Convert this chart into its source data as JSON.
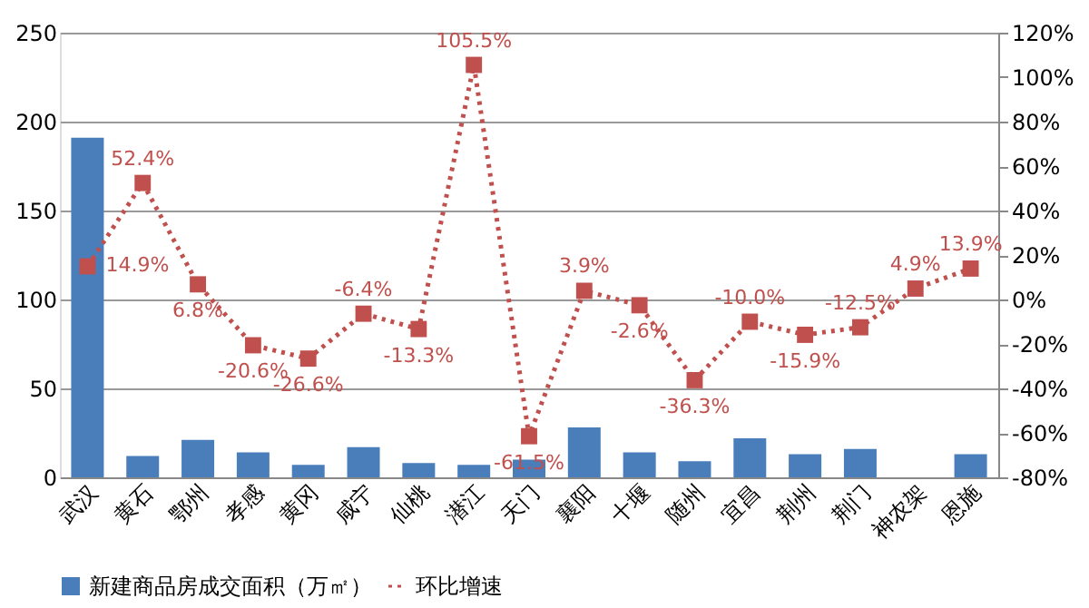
{
  "chart_data": {
    "type": "bar",
    "categories": [
      "武汉",
      "黄石",
      "鄂州",
      "孝感",
      "黄冈",
      "咸宁",
      "仙桃",
      "潜江",
      "天门",
      "襄阳",
      "十堰",
      "随州",
      "宜昌",
      "荆州",
      "荆门",
      "神农架",
      "恩施"
    ],
    "series": [
      {
        "name": "新建商品房成交面积（万㎡）",
        "color": "#4a7ebb",
        "values": [
          191,
          12,
          21,
          14,
          7,
          17,
          8,
          7,
          10,
          28,
          14,
          9,
          22,
          13,
          16,
          null,
          13
        ]
      },
      {
        "name": "环比增速",
        "type": "line",
        "axis": "y2",
        "color": "#c0504d",
        "marker": "square",
        "line_style": "dotted",
        "values": [
          14.9,
          52.4,
          6.8,
          -20.6,
          -26.6,
          -6.4,
          -13.3,
          105.5,
          -61.5,
          3.9,
          -2.6,
          -36.3,
          -10.0,
          -15.9,
          -12.5,
          4.9,
          13.9
        ],
        "value_labels": [
          "14.9%",
          "52.4%",
          "6.8%",
          "-20.6%",
          "-26.6%",
          "-6.4%",
          "-13.3%",
          "105.5%",
          "-61.5%",
          "3.9%",
          "-2.6%",
          "-36.3%",
          "-10.0%",
          "-15.9%",
          "-12.5%",
          "4.9%",
          "13.9%"
        ]
      }
    ],
    "ylim": [
      0,
      250
    ],
    "yticks": [
      0,
      50,
      100,
      150,
      200,
      250
    ],
    "y2lim": [
      -80,
      120
    ],
    "y2ticks": [
      {
        "value": -80,
        "label": "-80%"
      },
      {
        "value": -60,
        "label": "-60%"
      },
      {
        "value": -40,
        "label": "-40%"
      },
      {
        "value": -20,
        "label": "-20%"
      },
      {
        "value": 0,
        "label": "0%"
      },
      {
        "value": 20,
        "label": "20%"
      },
      {
        "value": 40,
        "label": "40%"
      },
      {
        "value": 60,
        "label": "60%"
      },
      {
        "value": 80,
        "label": "80%"
      },
      {
        "value": 100,
        "label": "100%"
      },
      {
        "value": 120,
        "label": "120%"
      }
    ],
    "grid": "y",
    "legend": "bottom"
  }
}
